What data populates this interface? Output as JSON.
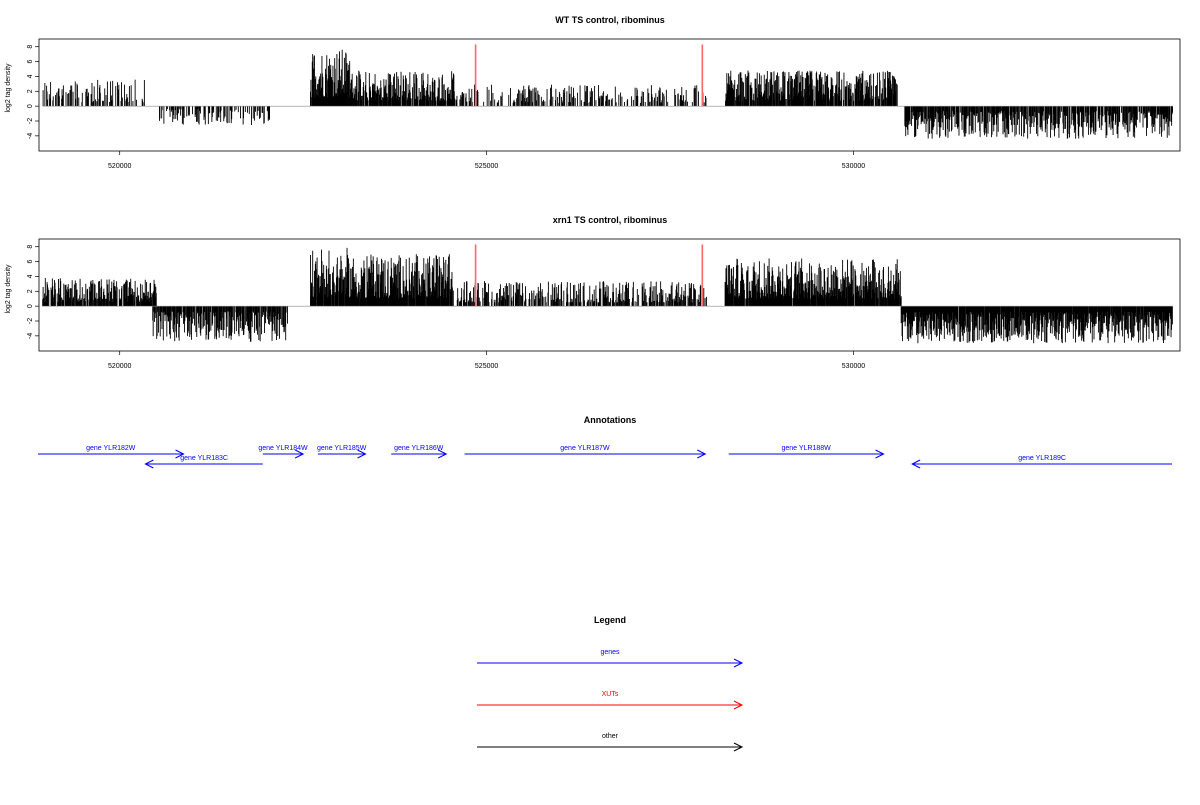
{
  "colors": {
    "gene": "#0000ff",
    "xut": "#ff0000",
    "other": "#000000",
    "bar": "#000000",
    "xut_marker": "#ff6666"
  },
  "chart_data": [
    {
      "type": "bar",
      "title": "WT TS control, ribominus",
      "ylabel": "log2 tag density",
      "xlim": [
        518900,
        534450
      ],
      "ylim": [
        -5.5,
        8.5
      ],
      "yticks": [
        8,
        6,
        4,
        2,
        0,
        -2,
        -4
      ],
      "xticks": [
        520000,
        525000,
        530000
      ],
      "xtick_labels": [
        "520000",
        "525000",
        "530000"
      ],
      "xut_markers": [
        524850,
        527940
      ],
      "segments": [
        {
          "x0": 518950,
          "x1": 520350,
          "sign": 1,
          "max": 3.6,
          "density": 0.4
        },
        {
          "x0": 520500,
          "x1": 522050,
          "sign": -1,
          "max": 2.6,
          "density": 0.4
        },
        {
          "x0": 522600,
          "x1": 523150,
          "sign": 1,
          "max": 7.8,
          "density": 0.95
        },
        {
          "x0": 523150,
          "x1": 524600,
          "sign": 1,
          "max": 4.8,
          "density": 0.85
        },
        {
          "x0": 524600,
          "x1": 528000,
          "sign": 1,
          "max": 2.9,
          "density": 0.35
        },
        {
          "x0": 528250,
          "x1": 530600,
          "sign": 1,
          "max": 4.8,
          "density": 0.85
        },
        {
          "x0": 530700,
          "x1": 534350,
          "sign": -1,
          "max": 4.4,
          "density": 0.75
        }
      ]
    },
    {
      "type": "bar",
      "title": "xrn1 TS control, ribominus",
      "ylabel": "log2 tag density",
      "xlim": [
        518900,
        534450
      ],
      "ylim": [
        -5.5,
        8.5
      ],
      "yticks": [
        8,
        6,
        4,
        2,
        0,
        -2,
        -4
      ],
      "xticks": [
        520000,
        525000,
        530000
      ],
      "xtick_labels": [
        "520000",
        "525000",
        "530000"
      ],
      "xut_markers": [
        524850,
        527940
      ],
      "segments": [
        {
          "x0": 518950,
          "x1": 520500,
          "sign": 1,
          "max": 3.8,
          "density": 0.8
        },
        {
          "x0": 520450,
          "x1": 522300,
          "sign": -1,
          "max": 4.8,
          "density": 0.75
        },
        {
          "x0": 522600,
          "x1": 523100,
          "sign": 1,
          "max": 8.0,
          "density": 0.95
        },
        {
          "x0": 523100,
          "x1": 524550,
          "sign": 1,
          "max": 7.0,
          "density": 0.95
        },
        {
          "x0": 524600,
          "x1": 528000,
          "sign": 1,
          "max": 3.4,
          "density": 0.55
        },
        {
          "x0": 528250,
          "x1": 530650,
          "sign": 1,
          "max": 6.5,
          "density": 0.95
        },
        {
          "x0": 530650,
          "x1": 534350,
          "sign": -1,
          "max": 5.0,
          "density": 0.98
        }
      ]
    }
  ],
  "annotations": {
    "title": "Annotations",
    "genes": [
      {
        "label": "gene YLR182W",
        "start": 518500,
        "end": 520870,
        "strand": "+",
        "row": 0
      },
      {
        "label": "gene YLR183C",
        "start": 521950,
        "end": 520350,
        "strand": "-",
        "row": 1
      },
      {
        "label": "gene YLR184W",
        "start": 521950,
        "end": 522500,
        "strand": "+",
        "row": 0
      },
      {
        "label": "gene YLR185W",
        "start": 522700,
        "end": 523350,
        "strand": "+",
        "row": 0
      },
      {
        "label": "gene YLR186W",
        "start": 523700,
        "end": 524450,
        "strand": "+",
        "row": 0
      },
      {
        "label": "gene YLR187W",
        "start": 524700,
        "end": 527980,
        "strand": "+",
        "row": 0
      },
      {
        "label": "gene YLR188W",
        "start": 528300,
        "end": 530410,
        "strand": "+",
        "row": 0
      },
      {
        "label": "gene YLR189C",
        "start": 534900,
        "end": 530800,
        "strand": "-",
        "row": 1
      }
    ]
  },
  "legend": {
    "title": "Legend",
    "items": [
      {
        "label": "genes",
        "color": "#0000ff"
      },
      {
        "label": "XUTs",
        "color": "#ff0000"
      },
      {
        "label": "other",
        "color": "#000000"
      }
    ]
  }
}
